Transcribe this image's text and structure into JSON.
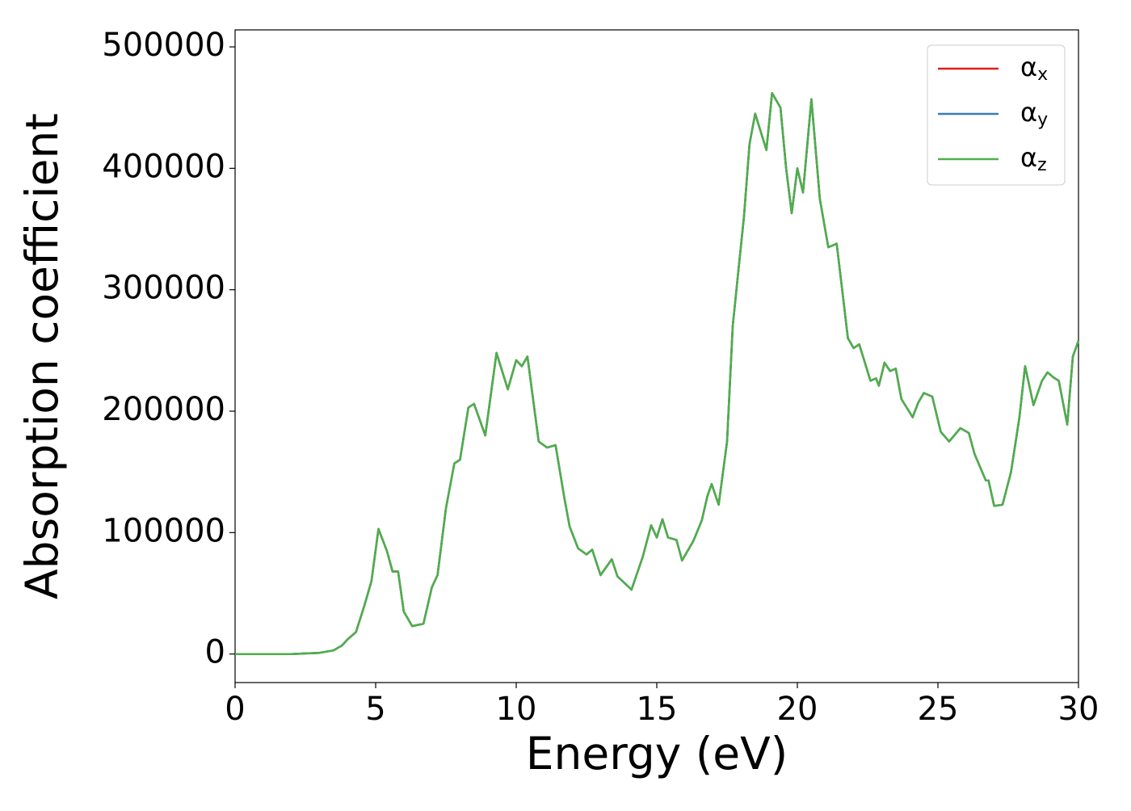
{
  "chart_data": {
    "type": "line",
    "xlabel": "Energy (eV)",
    "ylabel": "Absorption coefficient",
    "x": [
      0,
      2,
      3,
      3.5,
      3.8,
      4,
      4.3,
      4.6,
      4.85,
      5.1,
      5.4,
      5.6,
      5.8,
      6.0,
      6.3,
      6.7,
      7.0,
      7.2,
      7.5,
      7.8,
      8.0,
      8.3,
      8.5,
      8.9,
      9.3,
      9.7,
      10.0,
      10.2,
      10.4,
      10.8,
      11.1,
      11.4,
      11.7,
      11.9,
      12.2,
      12.5,
      12.7,
      13.0,
      13.4,
      13.6,
      14.1,
      14.5,
      14.8,
      15.0,
      15.2,
      15.4,
      15.7,
      15.9,
      16.3,
      16.6,
      16.8,
      16.95,
      17.2,
      17.5,
      17.7,
      17.9,
      18.1,
      18.3,
      18.5,
      18.9,
      19.1,
      19.4,
      19.6,
      19.8,
      20.0,
      20.2,
      20.5,
      20.8,
      21.1,
      21.4,
      21.8,
      22.0,
      22.2,
      22.6,
      22.8,
      22.9,
      23.1,
      23.3,
      23.5,
      23.7,
      24.1,
      24.3,
      24.5,
      24.8,
      25.1,
      25.4,
      25.8,
      26.1,
      26.3,
      26.7,
      26.8,
      27.0,
      27.3,
      27.6,
      27.9,
      28.1,
      28.4,
      28.7,
      28.9,
      29.1,
      29.3,
      29.6,
      29.8,
      30.0
    ],
    "series": [
      {
        "name": "αx",
        "color": "#e41a1c",
        "values": [
          0,
          0,
          1000,
          3000,
          7000,
          12000,
          18000,
          40000,
          60000,
          103000,
          85000,
          68000,
          68000,
          35000,
          23000,
          25000,
          55000,
          65000,
          120000,
          157000,
          160000,
          203000,
          206000,
          180000,
          248000,
          218000,
          242000,
          237000,
          245000,
          175000,
          170000,
          172000,
          130000,
          105000,
          87000,
          82000,
          86000,
          65000,
          78000,
          64000,
          53000,
          80000,
          106000,
          96000,
          111000,
          96000,
          94000,
          77000,
          93000,
          110000,
          130000,
          140000,
          123000,
          175000,
          270000,
          315000,
          360000,
          420000,
          445000,
          415000,
          462000,
          450000,
          400000,
          363000,
          400000,
          380000,
          457000,
          375000,
          335000,
          338000,
          260000,
          252000,
          255000,
          225000,
          227000,
          221000,
          240000,
          233000,
          235000,
          210000,
          195000,
          207000,
          215000,
          212000,
          183000,
          175000,
          186000,
          182000,
          165000,
          143000,
          143000,
          122000,
          123000,
          150000,
          195000,
          237000,
          205000,
          225000,
          232000,
          228000,
          225000,
          189000,
          245000,
          258000
        ]
      },
      {
        "name": "αy",
        "color": "#377eb8",
        "values": [
          0,
          0,
          1000,
          3000,
          7000,
          12000,
          18000,
          40000,
          60000,
          103000,
          85000,
          68000,
          68000,
          35000,
          23000,
          25000,
          55000,
          65000,
          120000,
          157000,
          160000,
          203000,
          206000,
          180000,
          248000,
          218000,
          242000,
          237000,
          245000,
          175000,
          170000,
          172000,
          130000,
          105000,
          87000,
          82000,
          86000,
          65000,
          78000,
          64000,
          53000,
          80000,
          106000,
          96000,
          111000,
          96000,
          94000,
          77000,
          93000,
          110000,
          130000,
          140000,
          123000,
          175000,
          270000,
          315000,
          360000,
          420000,
          445000,
          415000,
          462000,
          450000,
          400000,
          363000,
          400000,
          380000,
          457000,
          375000,
          335000,
          338000,
          260000,
          252000,
          255000,
          225000,
          227000,
          221000,
          240000,
          233000,
          235000,
          210000,
          195000,
          207000,
          215000,
          212000,
          183000,
          175000,
          186000,
          182000,
          165000,
          143000,
          143000,
          122000,
          123000,
          150000,
          195000,
          237000,
          205000,
          225000,
          232000,
          228000,
          225000,
          189000,
          245000,
          258000
        ]
      },
      {
        "name": "αz",
        "color": "#4daf4a",
        "values": [
          0,
          0,
          1000,
          3000,
          7000,
          12000,
          18000,
          40000,
          60000,
          103000,
          85000,
          68000,
          68000,
          35000,
          23000,
          25000,
          55000,
          65000,
          120000,
          157000,
          160000,
          203000,
          206000,
          180000,
          248000,
          218000,
          242000,
          237000,
          245000,
          175000,
          170000,
          172000,
          130000,
          105000,
          87000,
          82000,
          86000,
          65000,
          78000,
          64000,
          53000,
          80000,
          106000,
          96000,
          111000,
          96000,
          94000,
          77000,
          93000,
          110000,
          130000,
          140000,
          123000,
          175000,
          270000,
          315000,
          360000,
          420000,
          445000,
          415000,
          462000,
          450000,
          400000,
          363000,
          400000,
          380000,
          457000,
          375000,
          335000,
          338000,
          260000,
          252000,
          255000,
          225000,
          227000,
          221000,
          240000,
          233000,
          235000,
          210000,
          195000,
          207000,
          215000,
          212000,
          183000,
          175000,
          186000,
          182000,
          165000,
          143000,
          143000,
          122000,
          123000,
          150000,
          195000,
          237000,
          205000,
          225000,
          232000,
          228000,
          225000,
          189000,
          245000,
          258000
        ]
      }
    ],
    "xlim": [
      0,
      30
    ],
    "xticks": [
      0,
      5,
      10,
      15,
      20,
      25,
      30
    ],
    "ylim": [
      -23500,
      514000
    ],
    "yticks": [
      0,
      100000,
      200000,
      300000,
      400000,
      500000
    ],
    "legend": "upper right"
  }
}
